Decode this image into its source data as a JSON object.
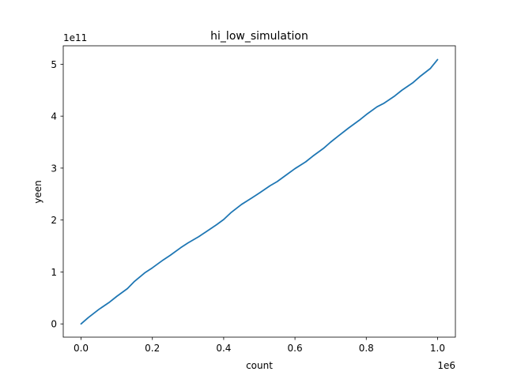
{
  "chart_data": {
    "type": "line",
    "title": "hi_low_simulation",
    "xlabel": "count",
    "ylabel": "yeen",
    "x_offset_label": "1e6",
    "y_offset_label": "1e11",
    "xlim": [
      -50000,
      1050000
    ],
    "ylim": [
      -25500000000.0,
      535500000000.0
    ],
    "x_ticks": [
      0,
      200000,
      400000,
      600000,
      800000,
      1000000
    ],
    "x_tick_labels": [
      "0.0",
      "0.2",
      "0.4",
      "0.6",
      "0.8",
      "1.0"
    ],
    "y_ticks": [
      0,
      100000000000.0,
      200000000000.0,
      300000000000.0,
      400000000000.0,
      500000000000.0
    ],
    "y_tick_labels": [
      "0",
      "1",
      "2",
      "3",
      "4",
      "5"
    ],
    "grid": false,
    "color": "#1f77b4",
    "series": [
      {
        "x": [
          0,
          20000,
          50000,
          80000,
          100000,
          130000,
          150000,
          180000,
          200000,
          230000,
          250000,
          280000,
          300000,
          330000,
          350000,
          380000,
          400000,
          420000,
          450000,
          480000,
          500000,
          530000,
          550000,
          580000,
          600000,
          630000,
          650000,
          680000,
          700000,
          720000,
          750000,
          780000,
          800000,
          830000,
          850000,
          880000,
          900000,
          930000,
          950000,
          980000,
          1000000
        ],
        "y": [
          0,
          12000000000.0,
          28000000000.0,
          42000000000.0,
          53000000000.0,
          68000000000.0,
          82000000000.0,
          99000000000.0,
          108000000000.0,
          123000000000.0,
          132000000000.0,
          147000000000.0,
          156000000000.0,
          168000000000.0,
          177000000000.0,
          191000000000.0,
          201000000000.0,
          214000000000.0,
          230000000000.0,
          243000000000.0,
          252000000000.0,
          266000000000.0,
          274000000000.0,
          289000000000.0,
          299000000000.0,
          312000000000.0,
          323000000000.0,
          338000000000.0,
          350000000000.0,
          361000000000.0,
          377000000000.0,
          392000000000.0,
          403000000000.0,
          418000000000.0,
          425000000000.0,
          439000000000.0,
          450000000000.0,
          464000000000.0,
          476000000000.0,
          492000000000.0,
          509000000000.0
        ]
      }
    ]
  }
}
